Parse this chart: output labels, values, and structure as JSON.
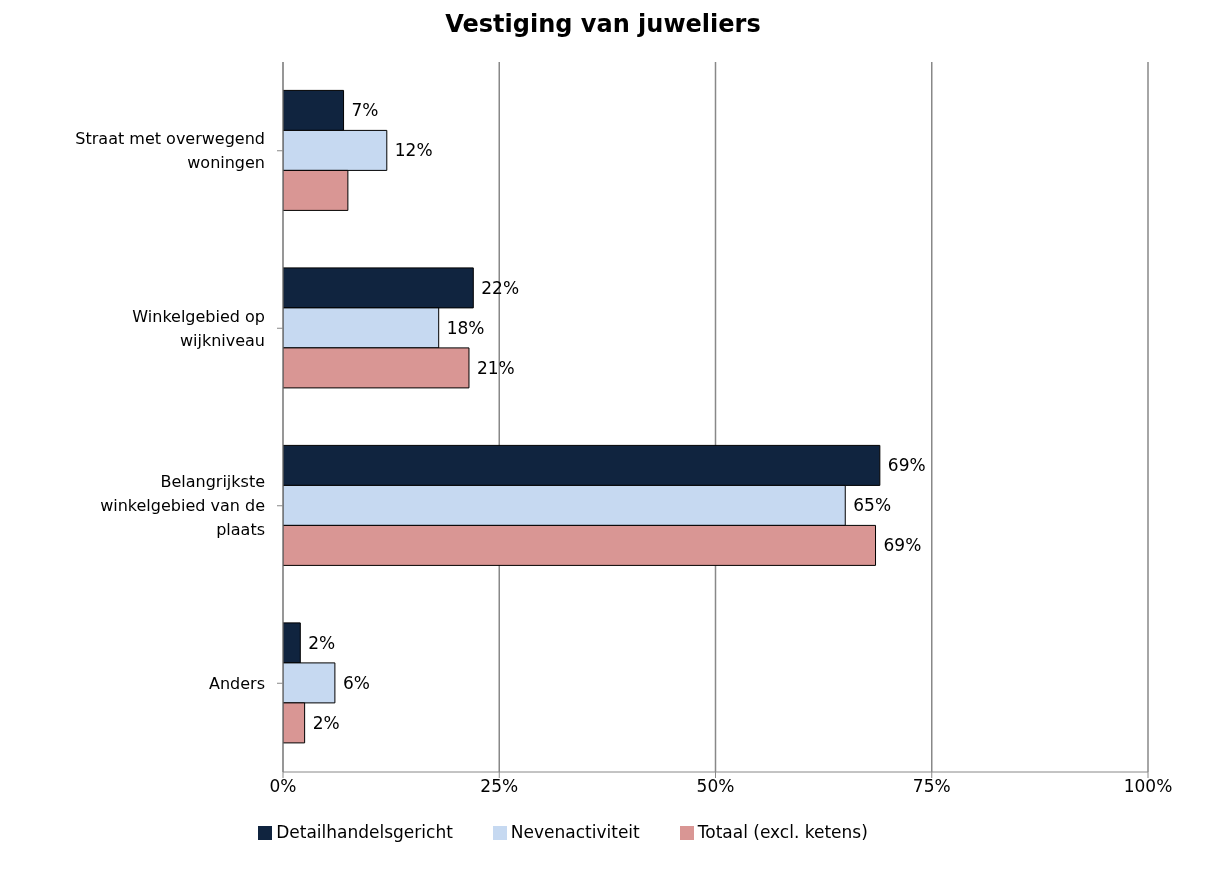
{
  "chart_data": {
    "type": "bar",
    "orientation": "horizontal",
    "title": "Vestiging van juweliers",
    "categories": [
      "Straat met overwegend woningen",
      "Winkelgebied op wijkniveau",
      "Belangrijkste winkelgebied van de plaats",
      "Anders"
    ],
    "series": [
      {
        "name": "Detailhandelsgericht",
        "color": "#10243f",
        "values": [
          7,
          22,
          69,
          2
        ],
        "value_labels": [
          "7%",
          "22%",
          "69%",
          "2%"
        ]
      },
      {
        "name": "Nevenactiviteit",
        "color": "#c6d9f1",
        "values": [
          12,
          18,
          65,
          6
        ],
        "value_labels": [
          "12%",
          "18%",
          "65%",
          "6%"
        ]
      },
      {
        "name": "Totaal (excl. ketens)",
        "color": "#d99694",
        "values": [
          7.5,
          21.5,
          68.5,
          2.5
        ],
        "value_labels": [
          null,
          "21%",
          "69%",
          "2%"
        ]
      }
    ],
    "xlim": [
      0,
      100
    ],
    "xticks": [
      {
        "value": 0,
        "label": "0%"
      },
      {
        "value": 25,
        "label": "25%"
      },
      {
        "value": 50,
        "label": "50%"
      },
      {
        "value": 75,
        "label": "75%"
      },
      {
        "value": 100,
        "label": "100%"
      }
    ],
    "grid": "x",
    "legend": "bottom"
  }
}
